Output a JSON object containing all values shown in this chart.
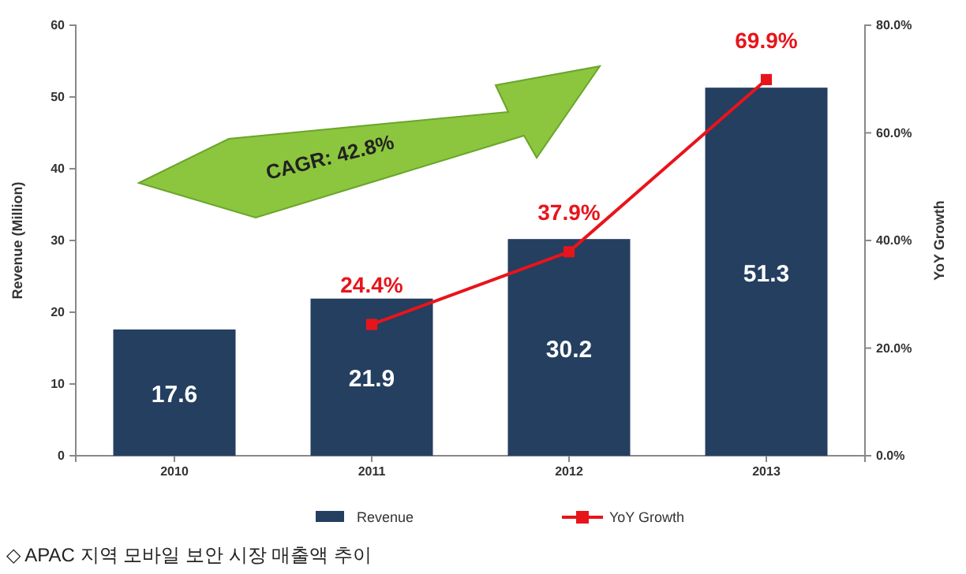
{
  "chart_data": {
    "type": "bar",
    "categories": [
      "2010",
      "2011",
      "2012",
      "2013"
    ],
    "series": [
      {
        "name": "Revenue",
        "color": "#243f60",
        "values": [
          17.6,
          21.9,
          30.2,
          51.3
        ],
        "value_labels": [
          "17.6",
          "21.9",
          "30.2",
          "51.3"
        ]
      },
      {
        "name": "YoY Growth",
        "type": "line",
        "axis": "y2",
        "color": "#e8141b",
        "values": [
          null,
          24.4,
          37.9,
          69.9
        ],
        "value_labels": [
          null,
          "24.4%",
          "37.9%",
          "69.9%"
        ],
        "marker": "square",
        "line_style": "solid"
      }
    ],
    "ylabel": "Revenue (Million)",
    "y2label": "YoY Growth",
    "ylim": [
      0,
      60
    ],
    "yticks": [
      0,
      10,
      20,
      30,
      40,
      50,
      60
    ],
    "y2lim": [
      0,
      80
    ],
    "y2ticks": [
      {
        "value": 0,
        "label": "0.0%"
      },
      {
        "value": 20,
        "label": "20.0%"
      },
      {
        "value": 40,
        "label": "40.0%"
      },
      {
        "value": 60,
        "label": "60.0%"
      },
      {
        "value": 80,
        "label": "80.0%"
      }
    ],
    "legend": "bottom",
    "grid": false,
    "annotations": [
      "CAGR: 42.8%",
      "◇ APAC 지역 모바일 보안 시장 매출액 추이"
    ]
  }
}
